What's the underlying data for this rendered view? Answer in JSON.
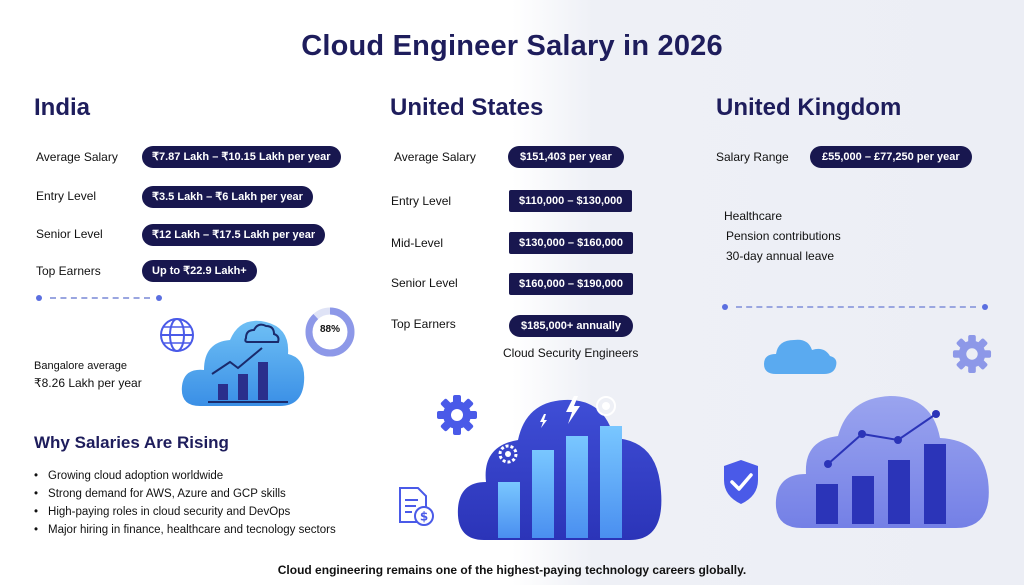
{
  "title": "Cloud Engineer Salary in 2026",
  "india": {
    "heading": "India",
    "rows": [
      {
        "label": "Average Salary",
        "value": "₹7.87 Lakh – ₹10.15 Lakh per year"
      },
      {
        "label": "Entry Level",
        "value": "₹3.5 Lakh – ₹6 Lakh per year"
      },
      {
        "label": "Senior Level",
        "value": "₹12 Lakh – ₹17.5 Lakh per year"
      },
      {
        "label": "Top Earners",
        "value": "Up to ₹22.9 Lakh+"
      }
    ],
    "gauge": {
      "label": "88%",
      "value": 88
    },
    "city_note": "Bangalore average",
    "city_value": "₹8.26 Lakh per year"
  },
  "why": {
    "heading": "Why Salaries Are Rising",
    "items": [
      "Growing cloud adoption worldwide",
      "Strong demand for AWS, Azure and GCP skills",
      "High-paying roles in cloud security and DevOps",
      "Major hiring in finance, healthcare and tecnology sectors"
    ]
  },
  "us": {
    "heading": "United States",
    "rows": [
      {
        "label": "Average Salary",
        "value": "$151,403 per year"
      },
      {
        "label": "Entry Level",
        "value": "$110,000 – $130,000"
      },
      {
        "label": "Mid-Level",
        "value": "$130,000 – $160,000"
      },
      {
        "label": "Senior Level",
        "value": "$160,000 – $190,000"
      },
      {
        "label": "Top Earners",
        "value": "$185,000+ annually"
      }
    ],
    "note": "Cloud Security Engineers"
  },
  "uk": {
    "heading": "United Kingdom",
    "rows": [
      {
        "label": "Salary Range",
        "value": "£55,000 – £77,250 per year"
      }
    ],
    "perks": [
      "Healthcare",
      "Pension contributions",
      "30-day annual leave"
    ]
  },
  "footer": "Cloud engineering remains one of the highest-paying technology careers globally.",
  "colors": {
    "navy": "#18174f",
    "accent": "#4a5ae8",
    "light_blue": "#4fa8f0"
  },
  "icons": [
    "globe-icon",
    "cloud-chart-icon",
    "gear-icon",
    "lightning-icon",
    "target-icon",
    "document-dollar-icon",
    "shield-check-icon",
    "cloud-icon"
  ]
}
